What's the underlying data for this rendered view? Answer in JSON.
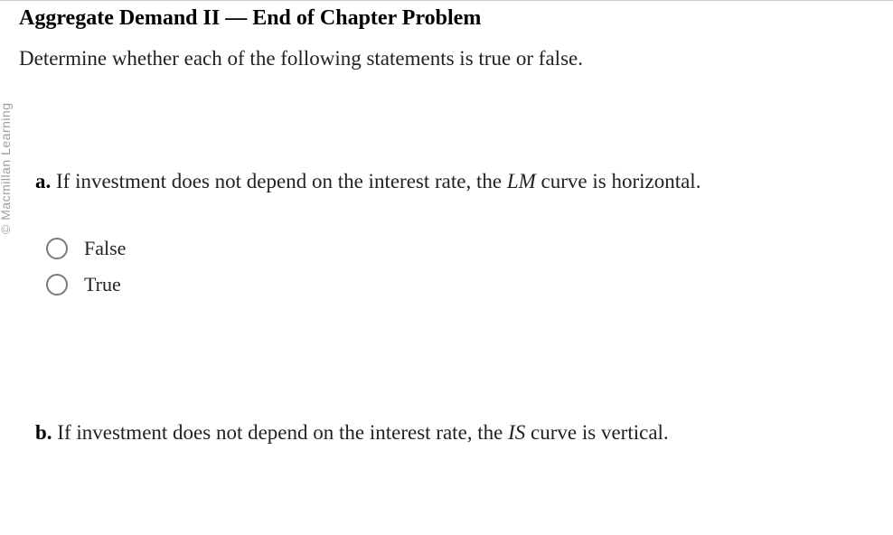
{
  "watermark": "© Macmillan Learning",
  "title": "Aggregate Demand II — End of Chapter Problem",
  "instruction": "Determine whether each of the following statements is true or false.",
  "question_a": {
    "label": "a.",
    "text_pre": " If investment does not depend on the interest rate, the ",
    "italic": "LM",
    "text_post": " curve is horizontal."
  },
  "options": {
    "false": "False",
    "true": "True"
  },
  "question_b": {
    "label": "b.",
    "text_pre": " If investment does not depend on the interest rate, the ",
    "italic": "IS",
    "text_post": " curve is vertical."
  }
}
